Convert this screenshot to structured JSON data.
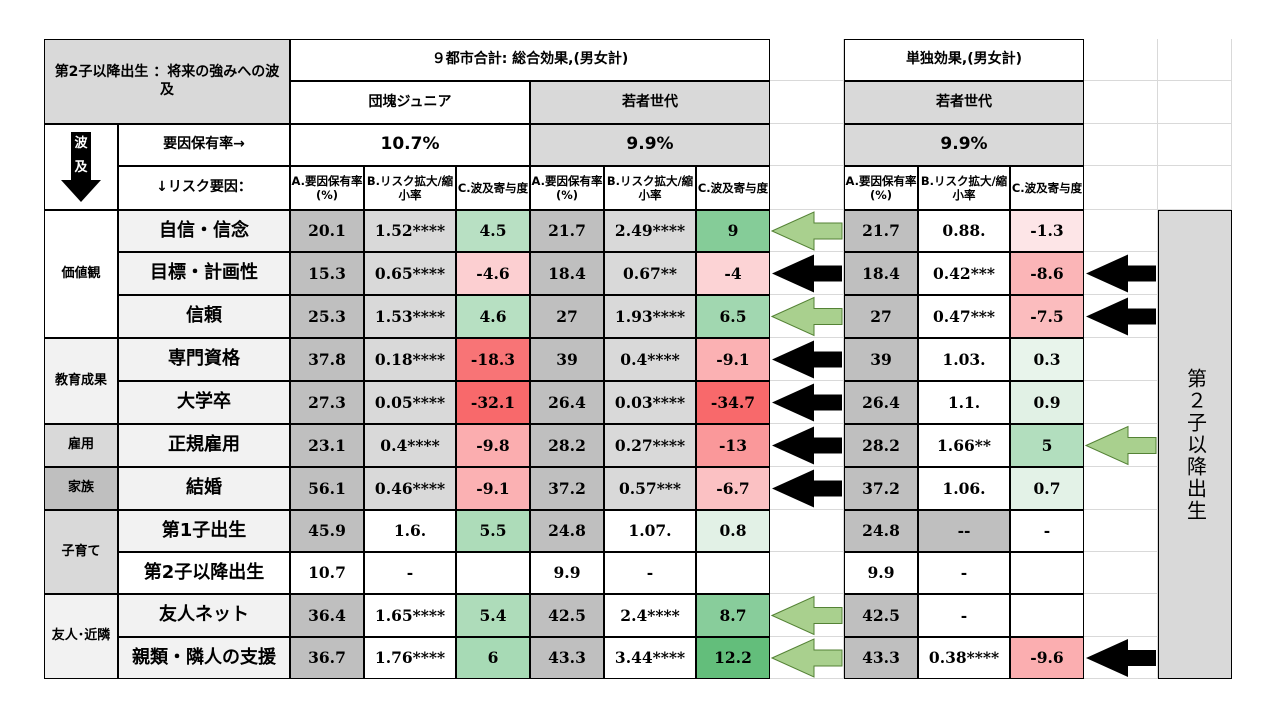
{
  "title": "第2子以降出生 ：将来の強みへの波及",
  "group_main": "９都市合計: 総合効果,(男女計)",
  "group_single": "単独効果,(男女計)",
  "seg_junior": "団塊ジュニア",
  "seg_young": "若者世代",
  "rate_label": "要因保有率→",
  "risk_label": "↓リスク要因：",
  "wave_chars": [
    "波",
    "及"
  ],
  "col_a": "A.要因保有率(%)",
  "col_b": "B.リスク拡大/縮小率",
  "col_c": "C.波及寄与度",
  "side_label": "第２子以降出生",
  "colors": {
    "gray_dark": "#bfbfbf",
    "gray_mid": "#d9d9d9",
    "green_arrow": "#a9d08e",
    "pos_strong": "#63be7b",
    "neg_strong": "#f8696b"
  },
  "chart_data": {
    "type": "table",
    "segments": [
      {
        "name": "団塊ジュニア",
        "group": "９都市合計: 総合効果,(男女計)",
        "rate": "10.7%"
      },
      {
        "name": "若者世代",
        "group": "９都市合計: 総合効果,(男女計)",
        "rate": "9.9%"
      },
      {
        "name": "若者世代",
        "group": "単独効果,(男女計)",
        "rate": "9.9%"
      }
    ],
    "categories": [
      {
        "label": "価値観",
        "rows": 3
      },
      {
        "label": "教育成果",
        "rows": 2
      },
      {
        "label": "雇用",
        "rows": 1
      },
      {
        "label": "家族",
        "rows": 1
      },
      {
        "label": "子育て",
        "rows": 2
      },
      {
        "label": "友人･近隣",
        "rows": 2
      }
    ],
    "rows": [
      {
        "item": "自信・信念",
        "junior": {
          "a": 20.1,
          "b": "1.52****",
          "c": 4.5
        },
        "young": {
          "a": 21.7,
          "b": "2.49****",
          "c": 9
        },
        "single": {
          "a": 21.7,
          "b": "0.88.",
          "c": -1.3
        },
        "arrow_main": "green",
        "arrow_single": ""
      },
      {
        "item": "目標・計画性",
        "junior": {
          "a": 15.3,
          "b": "0.65****",
          "c": -4.6
        },
        "young": {
          "a": 18.4,
          "b": "0.67**",
          "c": -4
        },
        "single": {
          "a": 18.4,
          "b": "0.42***",
          "c": -8.6
        },
        "arrow_main": "black",
        "arrow_single": "black"
      },
      {
        "item": "信頼",
        "junior": {
          "a": 25.3,
          "b": "1.53****",
          "c": 4.6
        },
        "young": {
          "a": 27,
          "b": "1.93****",
          "c": 6.5
        },
        "single": {
          "a": 27,
          "b": "0.47***",
          "c": -7.5
        },
        "arrow_main": "green",
        "arrow_single": "black"
      },
      {
        "item": "専門資格",
        "junior": {
          "a": 37.8,
          "b": "0.18****",
          "c": -18.3
        },
        "young": {
          "a": 39,
          "b": "0.4****",
          "c": -9.1
        },
        "single": {
          "a": 39,
          "b": "1.03.",
          "c": 0.3
        },
        "arrow_main": "black",
        "arrow_single": ""
      },
      {
        "item": "大学卒",
        "junior": {
          "a": 27.3,
          "b": "0.05****",
          "c": -32.1
        },
        "young": {
          "a": 26.4,
          "b": "0.03****",
          "c": -34.7
        },
        "single": {
          "a": 26.4,
          "b": "1.1.",
          "c": 0.9
        },
        "arrow_main": "black",
        "arrow_single": ""
      },
      {
        "item": "正規雇用",
        "junior": {
          "a": 23.1,
          "b": "0.4****",
          "c": -9.8
        },
        "young": {
          "a": 28.2,
          "b": "0.27****",
          "c": -13
        },
        "single": {
          "a": 28.2,
          "b": "1.66**",
          "c": 5
        },
        "arrow_main": "black",
        "arrow_single": "green"
      },
      {
        "item": "結婚",
        "junior": {
          "a": 56.1,
          "b": "0.46****",
          "c": -9.1
        },
        "young": {
          "a": 37.2,
          "b": "0.57***",
          "c": -6.7
        },
        "single": {
          "a": 37.2,
          "b": "1.06.",
          "c": 0.7
        },
        "arrow_main": "black",
        "arrow_single": ""
      },
      {
        "item": "第1子出生",
        "junior": {
          "a": 45.9,
          "b": "1.6.",
          "c": 5.5
        },
        "young": {
          "a": 24.8,
          "b": "1.07.",
          "c": 0.8
        },
        "single": {
          "a": 24.8,
          "b": "--",
          "c": "-"
        },
        "arrow_main": "",
        "arrow_single": ""
      },
      {
        "item": "第2子以降出生",
        "junior": {
          "a": 10.7,
          "b": "-",
          "c": ""
        },
        "young": {
          "a": 9.9,
          "b": "-",
          "c": ""
        },
        "single": {
          "a": 9.9,
          "b": "-",
          "c": ""
        },
        "arrow_main": "",
        "arrow_single": ""
      },
      {
        "item": "友人ネット",
        "junior": {
          "a": 36.4,
          "b": "1.65****",
          "c": 5.4
        },
        "young": {
          "a": 42.5,
          "b": "2.4****",
          "c": 8.7
        },
        "single": {
          "a": 42.5,
          "b": "-",
          "c": ""
        },
        "arrow_main": "green",
        "arrow_single": ""
      },
      {
        "item": "親類・隣人の支援",
        "junior": {
          "a": 36.7,
          "b": "1.76****",
          "c": 6
        },
        "young": {
          "a": 43.3,
          "b": "3.44****",
          "c": 12.2
        },
        "single": {
          "a": 43.3,
          "b": "0.38****",
          "c": -9.6
        },
        "arrow_main": "green",
        "arrow_single": "black"
      }
    ]
  }
}
